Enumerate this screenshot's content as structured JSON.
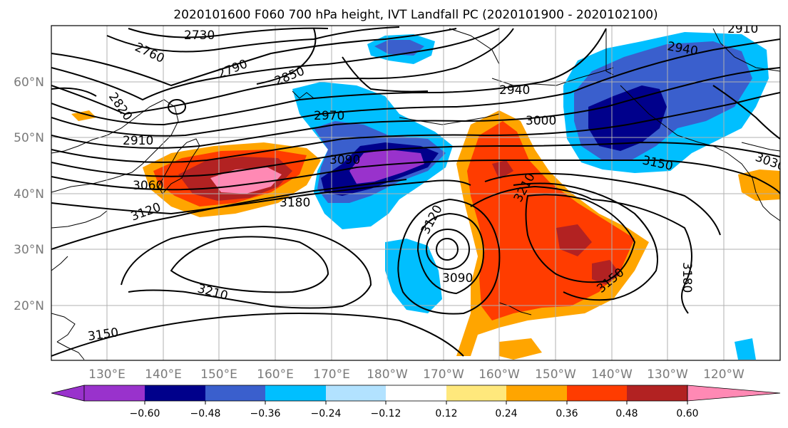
{
  "title": "2020101600 F060 700 hPa height, IVT Landfall PC (2020101900 - 2020102100)",
  "lat_labels": [
    "60°N",
    "50°N",
    "40°N",
    "30°N",
    "20°N"
  ],
  "lon_labels": [
    "130°E",
    "140°E",
    "150°E",
    "160°E",
    "170°E",
    "180°W",
    "170°W",
    "160°W",
    "150°W",
    "140°W",
    "130°W",
    "120°W"
  ],
  "contour_labels": [
    "2730",
    "2760",
    "2790",
    "2850",
    "2820",
    "2910",
    "3060",
    "3120",
    "2970",
    "3090",
    "3180",
    "3210",
    "3150",
    "2940",
    "3000",
    "2940",
    "3150",
    "3210",
    "3120",
    "3090",
    "3150",
    "3180",
    "3030",
    "2910"
  ],
  "colorbar": {
    "ticks": [
      "−0.60",
      "−0.48",
      "−0.36",
      "−0.24",
      "−0.12",
      "0.12",
      "0.24",
      "0.36",
      "0.48",
      "0.60"
    ],
    "colors": [
      "#9932cc",
      "#00008b",
      "#3a5fcd",
      "#00bfff",
      "#b2e2ff",
      "#ffffff",
      "#ffe87c",
      "#ffa500",
      "#ff3c00",
      "#b22222",
      "#ff89b4"
    ]
  }
}
